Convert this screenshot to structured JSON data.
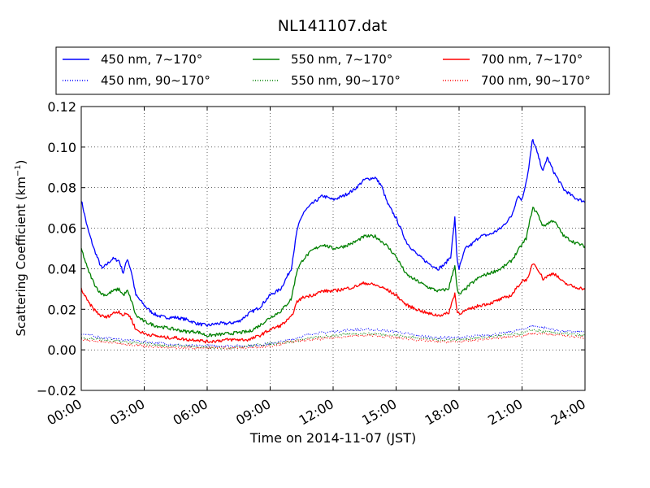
{
  "chart_data": {
    "type": "line",
    "title": "NL141107.dat",
    "xlabel": "Time on 2014-11-07 (JST)",
    "ylabel_main": "Scattering Coefficient (km",
    "ylabel_sup": "−1",
    "ylabel_tail": ")",
    "xlim": [
      0,
      24
    ],
    "ylim": [
      -0.02,
      0.12
    ],
    "x_ticks": [
      0,
      3,
      6,
      9,
      12,
      15,
      18,
      21,
      24
    ],
    "x_tick_labels": [
      "00:00",
      "03:00",
      "06:00",
      "09:00",
      "12:00",
      "15:00",
      "18:00",
      "21:00",
      "24:00"
    ],
    "y_ticks": [
      -0.02,
      0.0,
      0.02,
      0.04,
      0.06,
      0.08,
      0.1,
      0.12
    ],
    "y_tick_labels": [
      "−0.02",
      "0.00",
      "0.02",
      "0.04",
      "0.06",
      "0.08",
      "0.10",
      "0.12"
    ],
    "grid": true,
    "legend_position": "top",
    "colors": {
      "450": "#0000ff",
      "550": "#008000",
      "700": "#ff0000"
    },
    "series": [
      {
        "name": "450 nm, 7∼170°",
        "color": "#0000ff",
        "style": "solid",
        "x": [
          0,
          0.3,
          0.6,
          0.9,
          1.0,
          1.3,
          1.5,
          1.8,
          2.0,
          2.2,
          2.4,
          2.6,
          3.0,
          3.3,
          3.6,
          4.0,
          4.5,
          5.0,
          5.5,
          6.0,
          6.5,
          7.0,
          7.5,
          8.0,
          8.5,
          9.0,
          9.5,
          10.0,
          10.3,
          10.6,
          11.0,
          11.5,
          12.0,
          12.5,
          13.0,
          13.5,
          14.0,
          14.3,
          14.6,
          15.0,
          15.5,
          16.0,
          16.5,
          17.0,
          17.3,
          17.6,
          17.8,
          17.9,
          18.0,
          18.3,
          18.6,
          19.0,
          19.5,
          20.0,
          20.5,
          20.8,
          21.0,
          21.3,
          21.5,
          21.7,
          22.0,
          22.2,
          22.5,
          23.0,
          23.5,
          24.0
        ],
        "values": [
          0.074,
          0.06,
          0.05,
          0.042,
          0.04,
          0.043,
          0.045,
          0.044,
          0.038,
          0.045,
          0.038,
          0.027,
          0.022,
          0.019,
          0.017,
          0.016,
          0.016,
          0.015,
          0.013,
          0.012,
          0.013,
          0.013,
          0.014,
          0.018,
          0.021,
          0.027,
          0.03,
          0.04,
          0.06,
          0.068,
          0.072,
          0.076,
          0.074,
          0.076,
          0.079,
          0.084,
          0.085,
          0.081,
          0.072,
          0.065,
          0.053,
          0.047,
          0.043,
          0.04,
          0.042,
          0.046,
          0.065,
          0.045,
          0.04,
          0.05,
          0.052,
          0.056,
          0.057,
          0.06,
          0.066,
          0.076,
          0.074,
          0.088,
          0.104,
          0.098,
          0.088,
          0.095,
          0.088,
          0.079,
          0.075,
          0.073
        ]
      },
      {
        "name": "450 nm, 90∼170°",
        "color": "#0000ff",
        "style": "dotted",
        "x": [
          0,
          1,
          2,
          3,
          4,
          5,
          6,
          7,
          8,
          9,
          10,
          11,
          12,
          13,
          14,
          15,
          16,
          17,
          18,
          19,
          20,
          21,
          21.5,
          22,
          23,
          24
        ],
        "values": [
          0.008,
          0.006,
          0.005,
          0.004,
          0.003,
          0.002,
          0.002,
          0.002,
          0.002,
          0.003,
          0.005,
          0.008,
          0.009,
          0.01,
          0.01,
          0.009,
          0.007,
          0.006,
          0.006,
          0.007,
          0.008,
          0.01,
          0.012,
          0.011,
          0.009,
          0.009
        ]
      },
      {
        "name": "550 nm, 7∼170°",
        "color": "#008000",
        "style": "solid",
        "x": [
          0,
          0.3,
          0.6,
          0.9,
          1.2,
          1.5,
          1.8,
          2.0,
          2.2,
          2.4,
          2.6,
          3.0,
          3.5,
          4.0,
          4.5,
          5.0,
          5.5,
          6.0,
          7.0,
          8.0,
          8.5,
          9.0,
          9.5,
          10.0,
          10.3,
          10.6,
          11.0,
          11.5,
          12.0,
          12.5,
          13.0,
          13.5,
          14.0,
          14.5,
          15.0,
          15.5,
          16.0,
          16.5,
          17.0,
          17.5,
          17.8,
          17.9,
          18.0,
          18.5,
          19.0,
          19.5,
          20.0,
          20.5,
          21.0,
          21.2,
          21.5,
          21.7,
          22.0,
          22.5,
          23.0,
          23.5,
          24.0
        ],
        "values": [
          0.05,
          0.04,
          0.033,
          0.028,
          0.027,
          0.029,
          0.03,
          0.027,
          0.029,
          0.024,
          0.017,
          0.014,
          0.012,
          0.011,
          0.01,
          0.009,
          0.009,
          0.007,
          0.008,
          0.009,
          0.012,
          0.016,
          0.019,
          0.025,
          0.04,
          0.045,
          0.049,
          0.052,
          0.05,
          0.051,
          0.053,
          0.056,
          0.056,
          0.052,
          0.046,
          0.037,
          0.034,
          0.031,
          0.029,
          0.03,
          0.042,
          0.03,
          0.027,
          0.032,
          0.036,
          0.038,
          0.04,
          0.044,
          0.052,
          0.055,
          0.07,
          0.068,
          0.061,
          0.064,
          0.056,
          0.053,
          0.051
        ]
      },
      {
        "name": "550 nm, 90∼170°",
        "color": "#008000",
        "style": "dotted",
        "x": [
          0,
          1,
          2,
          3,
          4,
          5,
          6,
          7,
          8,
          9,
          10,
          11,
          12,
          13,
          14,
          15,
          16,
          17,
          18,
          19,
          20,
          21,
          21.5,
          22,
          23,
          24
        ],
        "values": [
          0.006,
          0.005,
          0.004,
          0.003,
          0.002,
          0.002,
          0.001,
          0.001,
          0.002,
          0.003,
          0.004,
          0.006,
          0.007,
          0.008,
          0.008,
          0.007,
          0.006,
          0.005,
          0.005,
          0.006,
          0.007,
          0.008,
          0.01,
          0.009,
          0.008,
          0.007
        ]
      },
      {
        "name": "700 nm, 7∼170°",
        "color": "#ff0000",
        "style": "solid",
        "x": [
          0,
          0.3,
          0.6,
          0.9,
          1.2,
          1.5,
          1.8,
          2.0,
          2.2,
          2.4,
          2.6,
          3.0,
          3.5,
          4.0,
          4.5,
          5.0,
          5.5,
          6.0,
          7.0,
          8.0,
          8.5,
          9.0,
          9.5,
          10.0,
          10.3,
          10.6,
          11.0,
          11.5,
          12.0,
          12.5,
          13.0,
          13.5,
          14.0,
          14.5,
          15.0,
          15.5,
          16.0,
          16.5,
          17.0,
          17.5,
          17.8,
          17.9,
          18.0,
          18.5,
          19.0,
          19.5,
          20.0,
          20.5,
          21.0,
          21.3,
          21.5,
          21.7,
          22.0,
          22.5,
          23.0,
          23.5,
          24.0
        ],
        "values": [
          0.03,
          0.024,
          0.02,
          0.017,
          0.016,
          0.018,
          0.019,
          0.017,
          0.018,
          0.015,
          0.01,
          0.008,
          0.007,
          0.006,
          0.006,
          0.005,
          0.005,
          0.004,
          0.005,
          0.005,
          0.007,
          0.01,
          0.012,
          0.016,
          0.024,
          0.026,
          0.027,
          0.029,
          0.029,
          0.03,
          0.031,
          0.033,
          0.032,
          0.03,
          0.027,
          0.022,
          0.02,
          0.018,
          0.017,
          0.018,
          0.028,
          0.019,
          0.018,
          0.02,
          0.022,
          0.023,
          0.025,
          0.027,
          0.034,
          0.035,
          0.043,
          0.041,
          0.035,
          0.038,
          0.033,
          0.031,
          0.03
        ]
      },
      {
        "name": "700 nm, 90∼170°",
        "color": "#ff0000",
        "style": "dotted",
        "x": [
          0,
          1,
          2,
          3,
          4,
          5,
          6,
          7,
          8,
          9,
          10,
          11,
          12,
          13,
          14,
          15,
          16,
          17,
          18,
          19,
          20,
          21,
          21.5,
          22,
          23,
          24
        ],
        "values": [
          0.005,
          0.004,
          0.003,
          0.002,
          0.001,
          0.001,
          0.001,
          0.001,
          0.001,
          0.002,
          0.004,
          0.005,
          0.006,
          0.007,
          0.007,
          0.006,
          0.005,
          0.004,
          0.004,
          0.005,
          0.006,
          0.007,
          0.008,
          0.008,
          0.007,
          0.006
        ]
      }
    ]
  }
}
